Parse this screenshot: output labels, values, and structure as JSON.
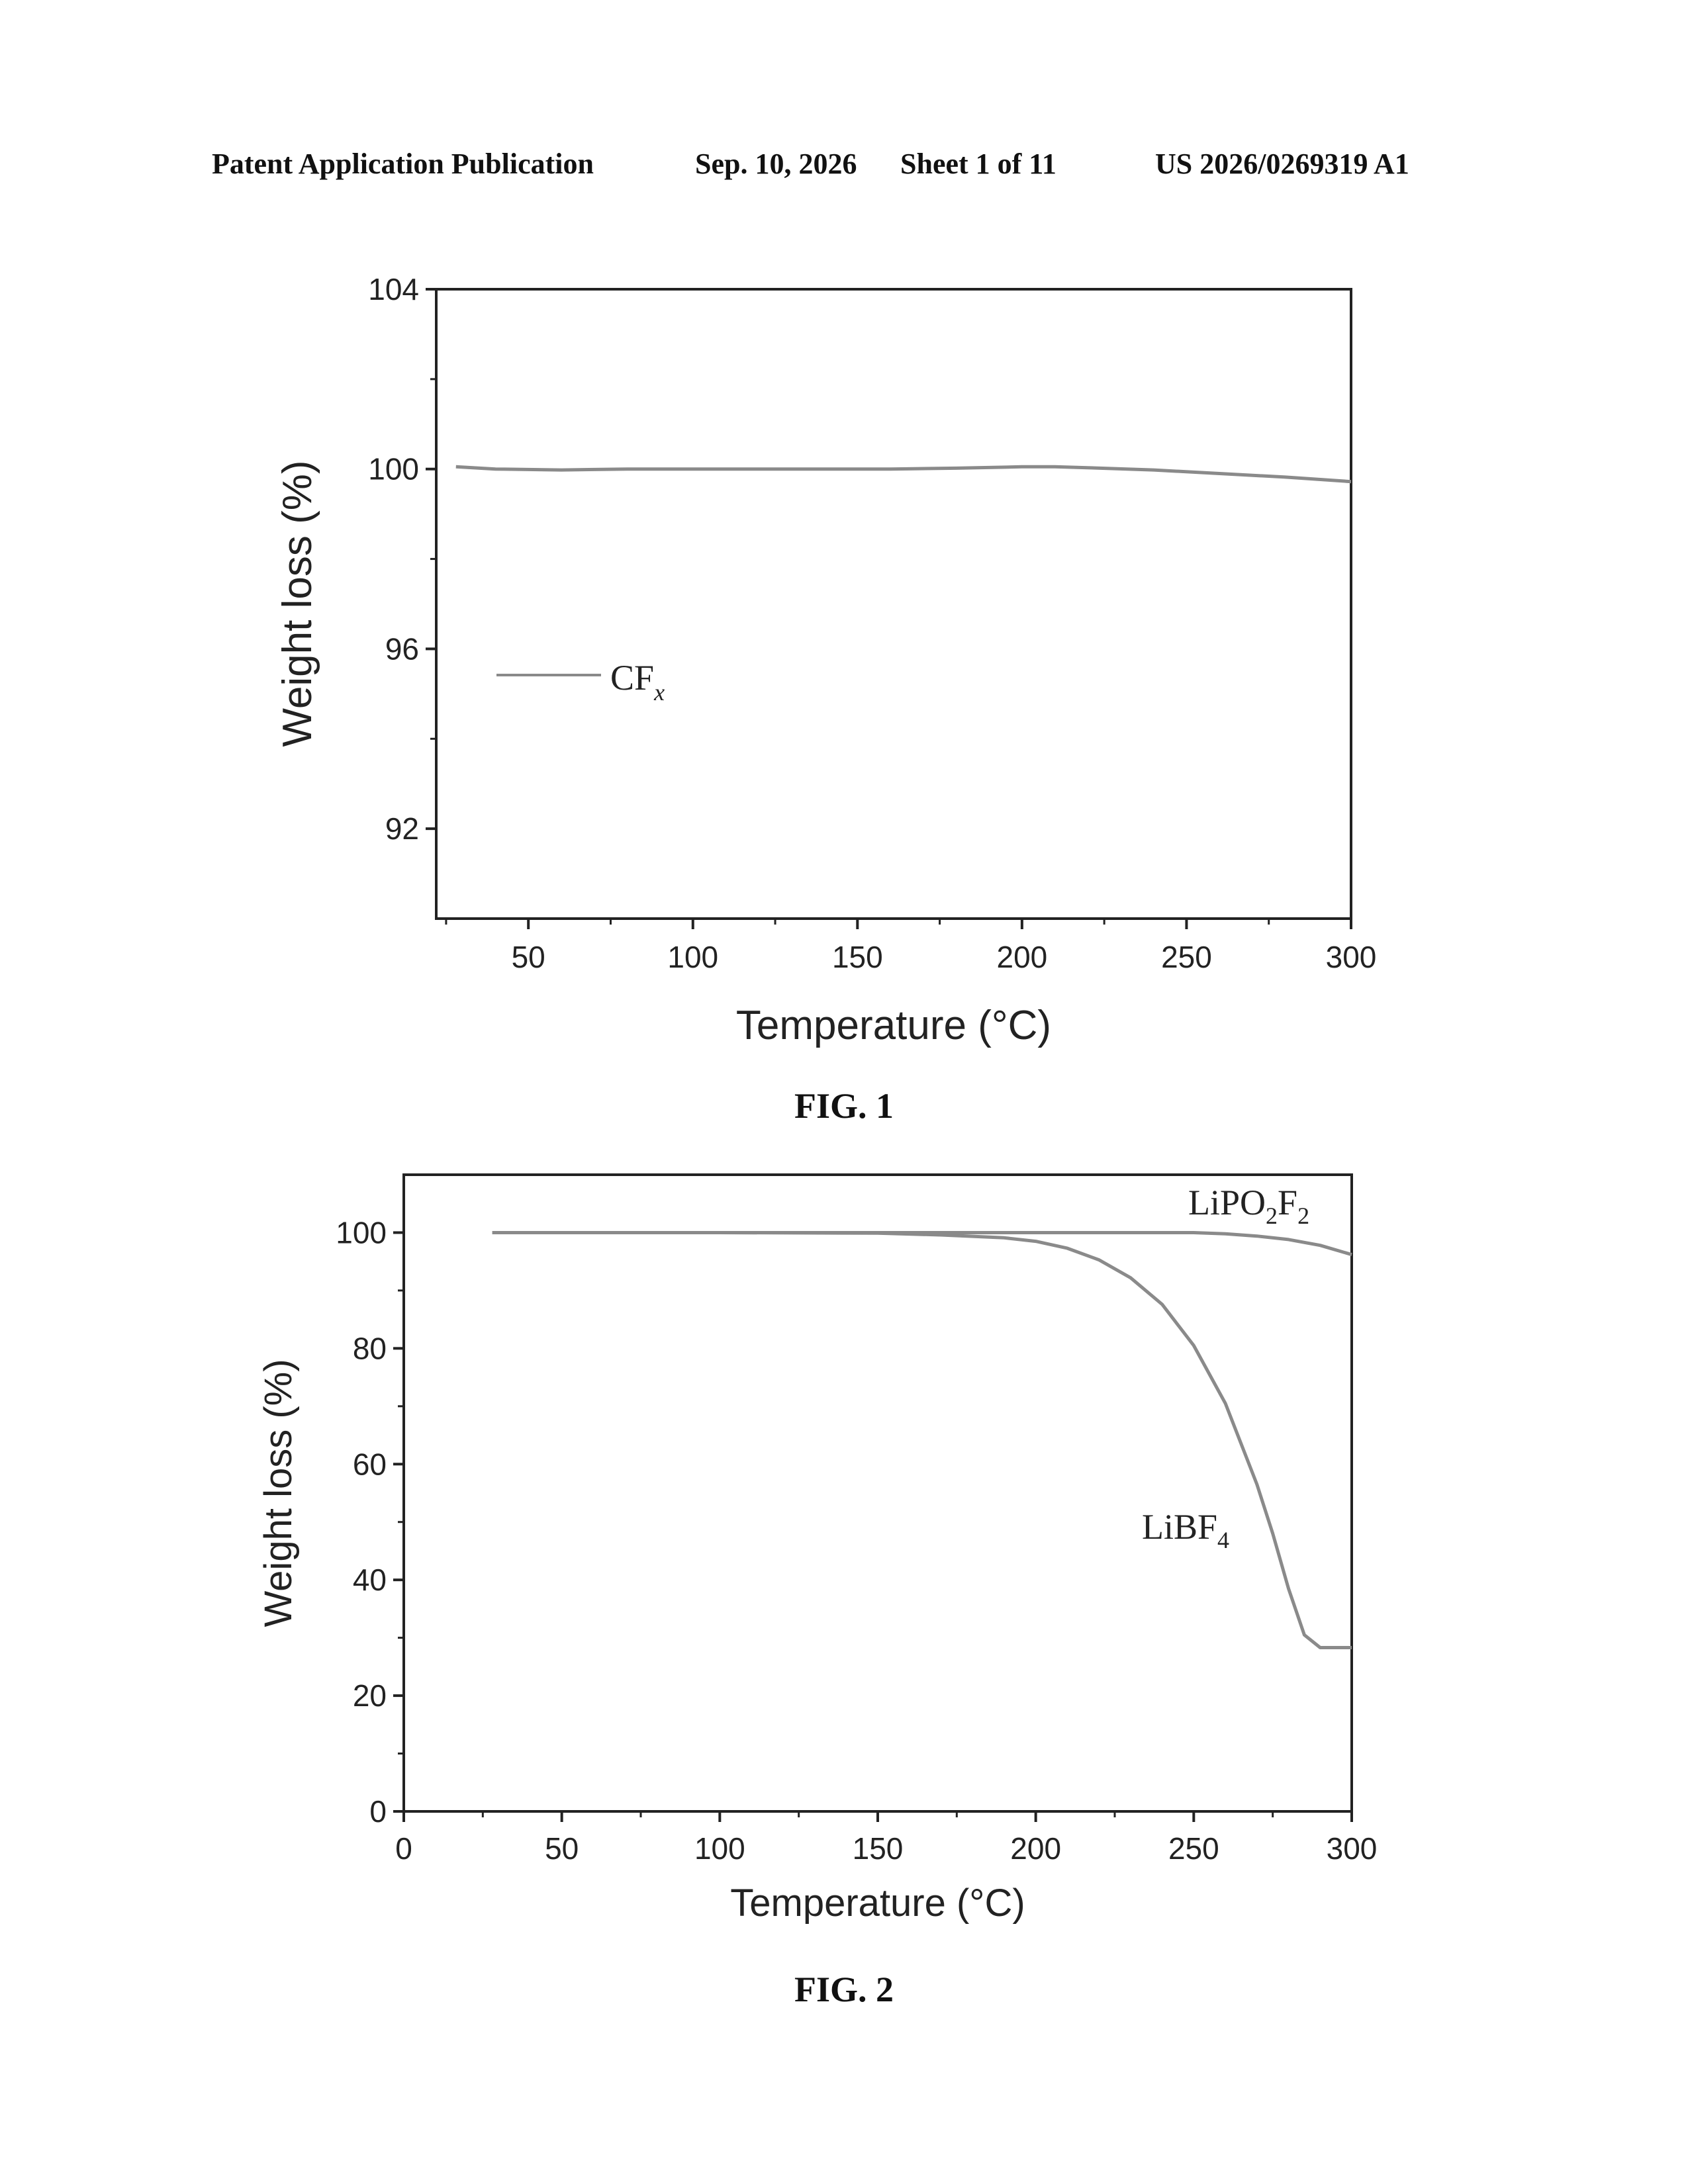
{
  "header": {
    "publication": "Patent Application Publication",
    "date": "Sep. 10, 2026",
    "sheet": "Sheet 1 of 11",
    "number": "US 2026/0269319 A1"
  },
  "figures": {
    "fig1_label": "FIG. 1",
    "fig2_label": "FIG. 2"
  },
  "chart_data": [
    {
      "type": "line",
      "xlabel": "Temperature (°C)",
      "ylabel": "Weight loss (%)",
      "xlim": [
        22,
        300
      ],
      "ylim": [
        90,
        104
      ],
      "xticks": [
        50,
        100,
        150,
        200,
        250,
        300
      ],
      "yticks": [
        92,
        96,
        100,
        104
      ],
      "legend_placement": "left-middle",
      "line_color": "#8a8a8a",
      "series": [
        {
          "name_main": "CF",
          "name_sub": "x",
          "x": [
            28,
            40,
            60,
            80,
            100,
            120,
            140,
            160,
            180,
            200,
            210,
            220,
            240,
            260,
            280,
            300
          ],
          "y": [
            100.05,
            100.0,
            99.98,
            100.0,
            100.0,
            100.0,
            100.0,
            100.0,
            100.02,
            100.05,
            100.05,
            100.03,
            99.98,
            99.9,
            99.82,
            99.72
          ]
        }
      ]
    },
    {
      "type": "line",
      "xlabel": "Temperature (°C)",
      "ylabel": "Weight loss (%)",
      "xlim": [
        0,
        300
      ],
      "ylim": [
        0,
        110
      ],
      "xticks": [
        0,
        50,
        100,
        150,
        200,
        250,
        300
      ],
      "yticks": [
        0,
        20,
        40,
        60,
        80,
        100
      ],
      "line_color": "#8a8a8a",
      "series": [
        {
          "name_main": "LiPO",
          "name_sub1": "2",
          "name_mid": "F",
          "name_sub2": "2",
          "label_placement": "top-right",
          "x": [
            28,
            60,
            100,
            150,
            200,
            250,
            260,
            270,
            280,
            290,
            300
          ],
          "y": [
            100,
            100,
            100,
            100,
            100,
            100,
            99.8,
            99.4,
            98.8,
            97.8,
            96.2
          ]
        },
        {
          "name_main": "LiBF",
          "name_sub": "4",
          "label_placement": "center-right",
          "x": [
            28,
            60,
            100,
            150,
            170,
            190,
            200,
            210,
            220,
            230,
            240,
            250,
            260,
            270,
            275,
            280,
            285,
            290,
            295,
            300
          ],
          "y": [
            100,
            100,
            100,
            99.9,
            99.6,
            99.1,
            98.5,
            97.3,
            95.3,
            92.2,
            87.6,
            80.5,
            70.5,
            56.5,
            48.0,
            38.5,
            30.5,
            28.3,
            28.3,
            28.3
          ]
        }
      ]
    }
  ]
}
